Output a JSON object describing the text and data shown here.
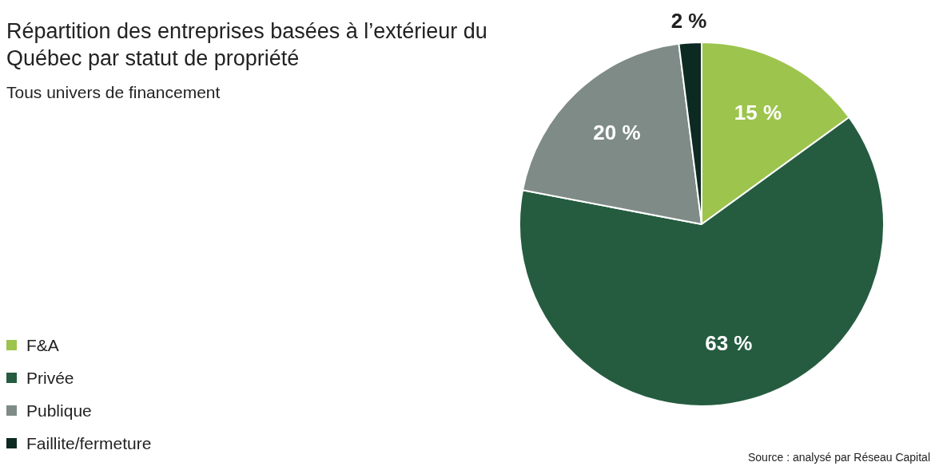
{
  "chart_data": {
    "type": "pie",
    "title": "Répartition des entreprises basées à l’extérieur du Québec par statut de propriété",
    "subtitle": "Tous univers de financement",
    "categories": [
      "F&A",
      "Privée",
      "Publique",
      "Faillite/fermeture"
    ],
    "values": [
      15,
      63,
      20,
      2
    ],
    "colors": [
      "#9dc44d",
      "#255c40",
      "#7f8b87",
      "#0d2a22"
    ],
    "value_labels": [
      "15 %",
      "63 %",
      "20 %",
      "2 %"
    ],
    "legend": "bottom left",
    "annotations": [
      "Source : analysé par Réseau Capital"
    ]
  }
}
